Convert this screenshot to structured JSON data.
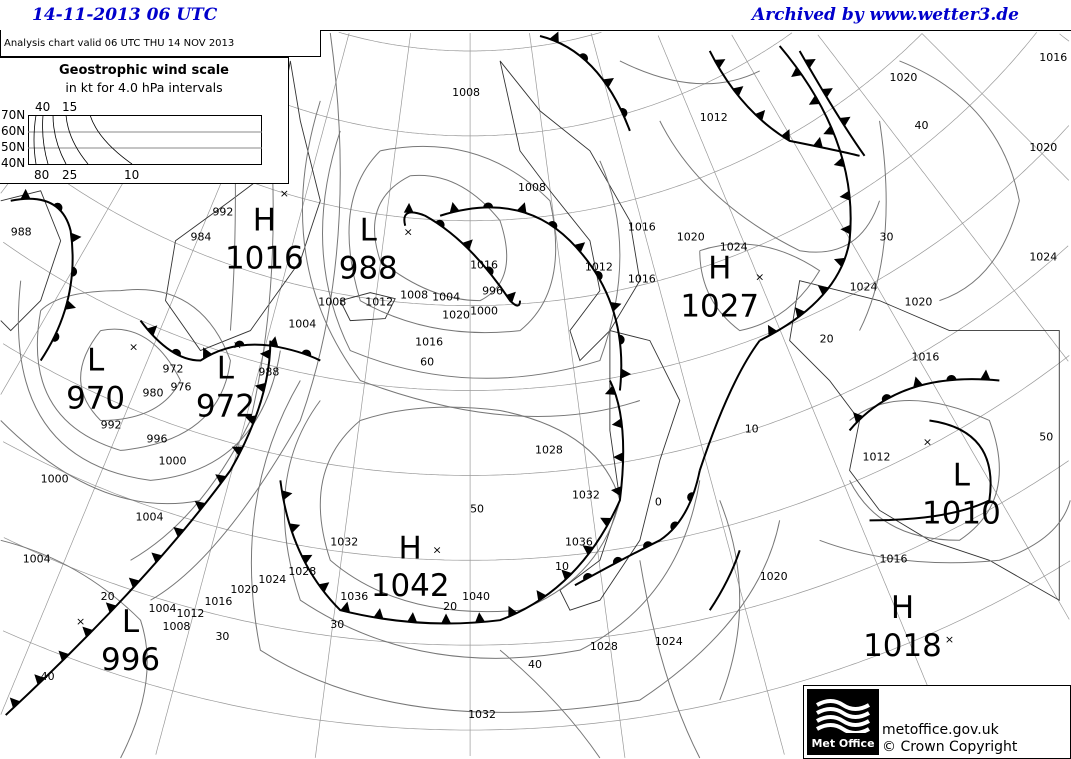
{
  "header": {
    "datetime": "14-11-2013  06 UTC",
    "archive": "Archived by www.wetter3.de",
    "text_color": "#0000cc"
  },
  "info": {
    "valid": "Analysis chart  valid 06 UTC THU 14  NOV 2013"
  },
  "wind_scale": {
    "title": "Geostrophic wind scale",
    "subtitle": "in kt for 4.0 hPa intervals",
    "latitudes": [
      "70N",
      "60N",
      "50N",
      "40N"
    ],
    "top_speeds": [
      "40",
      "15"
    ],
    "bottom_speeds": [
      "80",
      "25",
      "10"
    ]
  },
  "pressure_centers": [
    {
      "type": "H",
      "value": "1016"
    },
    {
      "type": "L",
      "value": "988"
    },
    {
      "type": "L",
      "value": "970"
    },
    {
      "type": "L",
      "value": "972"
    },
    {
      "type": "H",
      "value": "1027"
    },
    {
      "type": "H",
      "value": "1042"
    },
    {
      "type": "L",
      "value": "996"
    },
    {
      "type": "L",
      "value": "1010"
    },
    {
      "type": "H",
      "value": "1018"
    }
  ],
  "isobar_labels": [
    "1008",
    "1008",
    "1012",
    "1016",
    "1016",
    "1020",
    "1024",
    "1028",
    "1032",
    "1036",
    "1040",
    "1032",
    "1028",
    "1024",
    "1020",
    "1020",
    "1016",
    "1016",
    "1012",
    "1008",
    "1004",
    "1000",
    "996",
    "992",
    "988",
    "984",
    "980",
    "976",
    "972",
    "988",
    "992",
    "996",
    "1000",
    "1004",
    "1004",
    "1008",
    "1012",
    "1016",
    "1020",
    "1024",
    "1028",
    "1032",
    "1036",
    "1004",
    "1008",
    "1012",
    "1016",
    "1020",
    "1024",
    "1012",
    "1016",
    "1020",
    "1024",
    "1016",
    "1020",
    "1000",
    "1004"
  ],
  "latitude_labels": [
    "40",
    "30",
    "20",
    "10",
    "0",
    "60",
    "50",
    "40",
    "30",
    "20",
    "10",
    "50",
    "40",
    "30",
    "20"
  ],
  "logo": {
    "brand": "Met Office",
    "url": "metoffice.gov.uk",
    "copyright": "© Crown Copyright"
  }
}
